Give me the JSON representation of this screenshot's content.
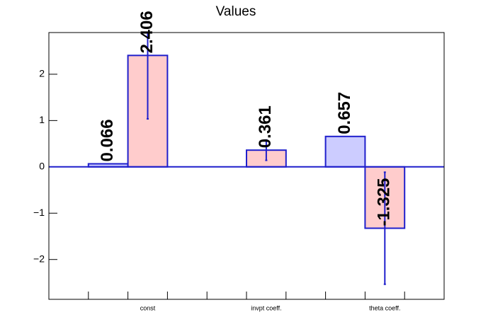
{
  "chart_data": {
    "type": "bar",
    "title": "Values",
    "categories": [
      null,
      null,
      "const",
      null,
      null,
      "invpt coeff.",
      null,
      null,
      "theta coeff.",
      null
    ],
    "series": [
      {
        "color": "#ccccff",
        "values": [
          null,
          0.066,
          null,
          null,
          null,
          null,
          null,
          0.657,
          null,
          null
        ]
      },
      {
        "color": "#ffcccc",
        "values": [
          null,
          null,
          2.406,
          null,
          null,
          0.361,
          null,
          null,
          -1.325,
          null
        ],
        "errors": [
          null,
          null,
          1.37,
          null,
          null,
          0.22,
          null,
          null,
          1.21,
          null
        ]
      }
    ],
    "ylim": [
      -2.86,
      2.9
    ],
    "yticks": [
      {
        "value": -2,
        "label": "−2"
      },
      {
        "value": -1,
        "label": "−1"
      },
      0,
      1,
      2
    ]
  }
}
